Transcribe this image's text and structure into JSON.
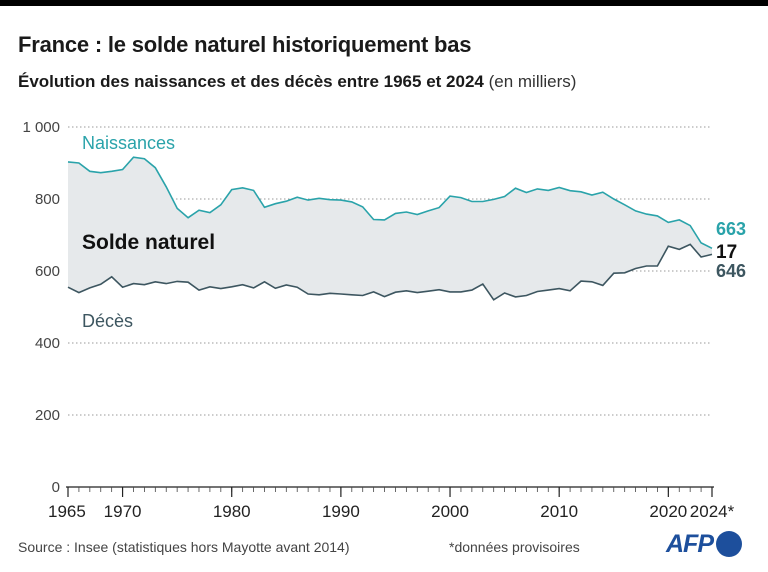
{
  "header": {
    "title": "France : le solde naturel historiquement bas",
    "subtitle": "Évolution des naissances et des décès entre 1965 et 2024",
    "subtitle_unit": "(en milliers)"
  },
  "footer": {
    "source": "Source : Insee (statistiques hors Mayotte avant 2014)",
    "note": "*données provisoires",
    "logo_text": "AFP"
  },
  "colors": {
    "births": "#2aa3aa",
    "deaths": "#3d5660",
    "fill": "#e6e9eb",
    "grid": "#9a9a9a"
  },
  "chart_data": {
    "type": "area",
    "ylim": [
      0,
      1000
    ],
    "yticks": [
      0,
      200,
      400,
      600,
      800,
      1000
    ],
    "ytick_labels": [
      "0",
      "200",
      "400",
      "600",
      "800",
      "1 000"
    ],
    "xlim": [
      1965,
      2024
    ],
    "xticks": [
      1965,
      1970,
      1980,
      1990,
      2000,
      2010,
      2020,
      2024
    ],
    "xtick_labels": [
      "1965",
      "1970",
      "1980",
      "1990",
      "2000",
      "2010",
      "2020",
      "2024*"
    ],
    "x": [
      1965,
      1966,
      1967,
      1968,
      1969,
      1970,
      1971,
      1972,
      1973,
      1974,
      1975,
      1976,
      1977,
      1978,
      1979,
      1980,
      1981,
      1982,
      1983,
      1984,
      1985,
      1986,
      1987,
      1988,
      1989,
      1990,
      1991,
      1992,
      1993,
      1994,
      1995,
      1996,
      1997,
      1998,
      1999,
      2000,
      2001,
      2002,
      2003,
      2004,
      2005,
      2006,
      2007,
      2008,
      2009,
      2010,
      2011,
      2012,
      2013,
      2014,
      2015,
      2016,
      2017,
      2018,
      2019,
      2020,
      2021,
      2022,
      2023,
      2024
    ],
    "series": [
      {
        "name": "Naissances",
        "values": [
          903,
          900,
          877,
          873,
          877,
          882,
          916,
          912,
          887,
          834,
          774,
          748,
          769,
          762,
          784,
          826,
          831,
          824,
          777,
          787,
          794,
          805,
          797,
          802,
          798,
          797,
          792,
          778,
          743,
          742,
          760,
          764,
          757,
          767,
          776,
          808,
          804,
          793,
          793,
          799,
          807,
          830,
          818,
          828,
          824,
          832,
          823,
          820,
          811,
          819,
          800,
          784,
          767,
          758,
          753,
          735,
          742,
          726,
          678,
          663
        ]
      },
      {
        "name": "Décès",
        "values": [
          555,
          540,
          553,
          563,
          584,
          555,
          565,
          562,
          570,
          565,
          571,
          569,
          547,
          556,
          551,
          556,
          562,
          553,
          570,
          552,
          561,
          555,
          536,
          534,
          538,
          536,
          534,
          532,
          542,
          529,
          541,
          545,
          540,
          544,
          548,
          542,
          542,
          547,
          564,
          520,
          539,
          528,
          532,
          543,
          547,
          551,
          545,
          572,
          570,
          560,
          594,
          595,
          607,
          614,
          614,
          669,
          660,
          674,
          639,
          646
        ]
      }
    ],
    "annotations": {
      "births_label": "Naissances",
      "deaths_label": "Décès",
      "balance_label": "Solde naturel",
      "births_end": "663",
      "balance_end": "17",
      "deaths_end": "646"
    }
  }
}
